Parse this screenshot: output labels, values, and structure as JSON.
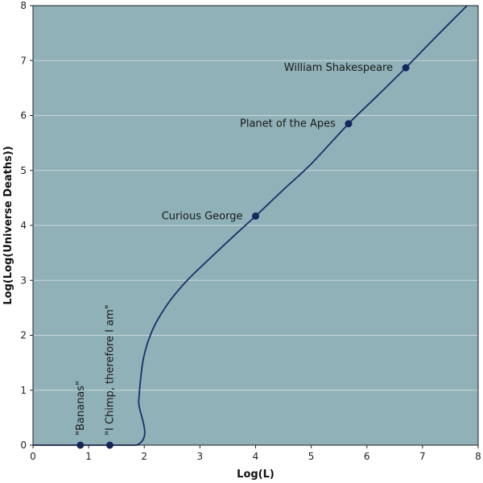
{
  "chart_data": {
    "type": "line",
    "xlabel": "Log(L)",
    "ylabel": "Log(Log(Universe Deaths))",
    "xlim": [
      0,
      8
    ],
    "ylim": [
      0,
      8
    ],
    "xticks": [
      0,
      1,
      2,
      3,
      4,
      5,
      6,
      7,
      8
    ],
    "yticks": [
      0,
      1,
      2,
      3,
      4,
      5,
      6,
      7,
      8
    ],
    "grid": "horizontal",
    "colors": {
      "background": "#8fb1b7",
      "line": "#1c2e6b",
      "point": "#14275f",
      "grid": "#c9d9dc"
    },
    "series": [
      {
        "x": [
          0,
          1.86,
          1.9,
          1.95,
          2.0,
          2.1,
          2.25,
          2.5,
          2.8,
          3.2,
          3.6,
          4.0,
          4.5,
          5.0,
          5.67,
          6.2,
          6.7,
          7.2,
          7.8
        ],
        "y": [
          0,
          0,
          0.8,
          1.35,
          1.65,
          1.98,
          2.3,
          2.68,
          3.03,
          3.42,
          3.8,
          4.17,
          4.65,
          5.12,
          5.85,
          6.37,
          6.87,
          7.39,
          8.0
        ]
      }
    ],
    "points": [
      {
        "label": "\"Bananas\"",
        "x": 0.85,
        "y": 0,
        "orientation": "vertical"
      },
      {
        "label": "\"I Chimp, therefore I am\"",
        "x": 1.38,
        "y": 0,
        "orientation": "vertical"
      },
      {
        "label": "Curious George",
        "x": 4.0,
        "y": 4.17,
        "orientation": "left"
      },
      {
        "label": "Planet of the Apes",
        "x": 5.67,
        "y": 5.85,
        "orientation": "left"
      },
      {
        "label": "William Shakespeare",
        "x": 6.7,
        "y": 6.87,
        "orientation": "left"
      }
    ]
  }
}
